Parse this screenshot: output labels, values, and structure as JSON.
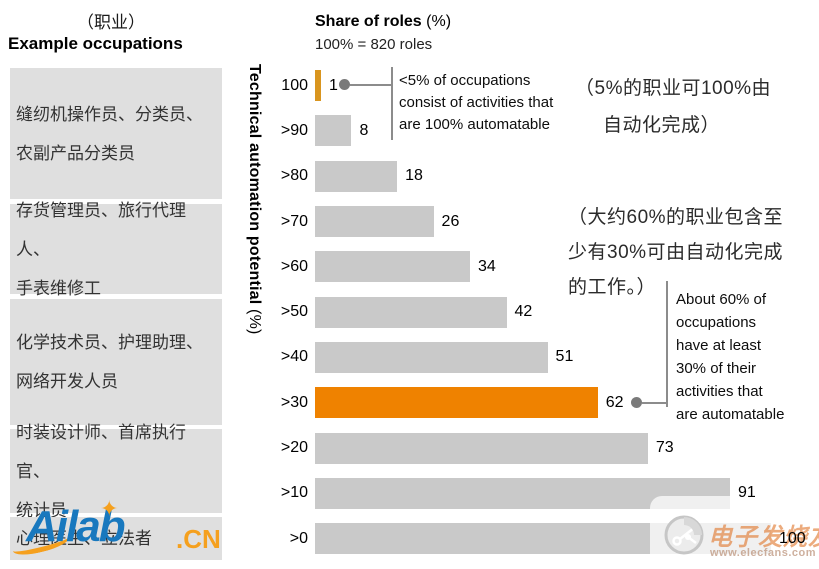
{
  "left_panel": {
    "title_zh": "（职业）",
    "title_en": "Example occupations",
    "boxes": [
      {
        "lines": [
          "缝纫机操作员、分类员、",
          "农副产品分类员"
        ]
      },
      {
        "lines": [
          "存货管理员、旅行代理人、",
          "手表维修工"
        ]
      },
      {
        "lines": [
          "化学技术员、护理助理、",
          "网络开发人员"
        ]
      },
      {
        "lines": [
          "时装设计师、首席执行官、",
          "统计员"
        ]
      },
      {
        "lines": [
          "心理医生、立法者"
        ]
      }
    ]
  },
  "chart": {
    "title_bold": "Share of roles",
    "title_rest": " (%)",
    "subtitle": "100% = 820 roles",
    "y_label_bold": "Technical automation potential",
    "y_label_rest": " (%)"
  },
  "chart_data": {
    "type": "bar",
    "orientation": "horizontal",
    "title": "Share of roles (%)",
    "subtitle": "100% = 820 roles",
    "ylabel": "Technical automation potential (%)",
    "categories": [
      "100",
      ">90",
      ">80",
      ">70",
      ">60",
      ">50",
      ">40",
      ">30",
      ">20",
      ">10",
      ">0"
    ],
    "values": [
      1,
      8,
      18,
      26,
      34,
      42,
      51,
      62,
      73,
      91,
      100
    ],
    "xlim": [
      0,
      100
    ],
    "grid": false,
    "legend": "none",
    "bar_color": "#c9c9c9",
    "highlight_color": "#ef8200",
    "highlight_color_top": "#d9951f",
    "highlight_indices": [
      0,
      7
    ]
  },
  "callouts": {
    "top_en": [
      "<5% of occupations",
      "consist of activities that",
      "are 100% automatable"
    ],
    "top_zh_line1": "（5%的职业可100%由",
    "top_zh_line2": "自动化完成）",
    "mid_zh": [
      "（大约60%的职业包含至",
      "少有30%可由自动化完成",
      "的工作。）"
    ],
    "mid_en": [
      "About 60% of",
      "occupations",
      "have at least",
      "30% of their",
      "activities that",
      "are automatable"
    ]
  },
  "watermarks": {
    "ailab": {
      "word": "Ailab",
      "suffix": ".CN",
      "star": "✦"
    },
    "elecfans": {
      "title": "电子发烧友",
      "url": "www.elecfans.com"
    }
  }
}
